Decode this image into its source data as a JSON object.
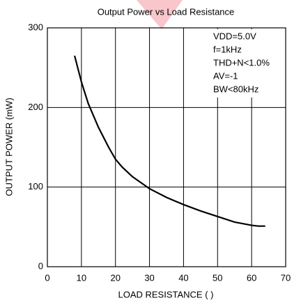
{
  "chart_data": {
    "type": "line",
    "title": "Output Power vs Load Resistance",
    "xlabel": "LOAD RESISTANCE (   )",
    "ylabel": "OUTPUT POWER (mW)",
    "x": [
      8,
      10,
      12,
      15,
      18,
      20,
      22,
      25,
      30,
      35,
      40,
      45,
      50,
      55,
      60,
      62,
      64
    ],
    "values": [
      265,
      232,
      205,
      175,
      150,
      135,
      125,
      113,
      98,
      87,
      78,
      70,
      63,
      56,
      52,
      51,
      51
    ],
    "color": "#000000",
    "xlim": [
      0,
      70
    ],
    "xticks": [
      0,
      10,
      20,
      30,
      40,
      50,
      60,
      70
    ],
    "ylim": [
      0,
      300
    ],
    "yticks": [
      0,
      100,
      200,
      300
    ],
    "grid": true,
    "annotations": [
      "VDD=5.0V",
      "f=1kHz",
      "THD+N<1.0%",
      "AV=-1",
      "BW<80kHz"
    ]
  }
}
